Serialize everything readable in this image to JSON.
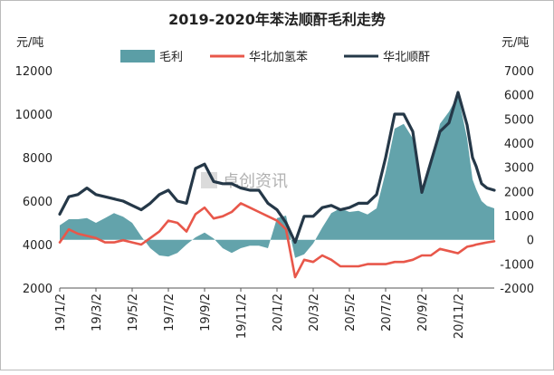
{
  "chart_data": {
    "type": "area",
    "title": "2019-2020年苯法顺酐毛利走势",
    "y_left_unit": "元/吨",
    "y_right_unit": "元/吨",
    "ylim_left": [
      2000,
      12000
    ],
    "ylim_right": [
      -2000,
      7000
    ],
    "yticks_left": [
      "2000",
      "4000",
      "6000",
      "8000",
      "10000",
      "12000"
    ],
    "yticks_right": [
      "-2000",
      "-1000",
      "0",
      "1000",
      "2000",
      "3000",
      "4000",
      "5000",
      "6000",
      "7000"
    ],
    "x_tick_labels": [
      "19/1/2",
      "19/3/2",
      "19/5/2",
      "19/7/2",
      "19/9/2",
      "19/11/2",
      "20/1/2",
      "20/3/2",
      "20/5/2",
      "20/7/2",
      "20/9/2",
      "20/11/2"
    ],
    "legend_position": "top",
    "watermark": "卓创资讯",
    "x_months": [
      0,
      0.5,
      1,
      1.5,
      2,
      2.5,
      3,
      3.5,
      4,
      4.5,
      5,
      5.5,
      6,
      6.5,
      7,
      7.5,
      8,
      8.5,
      9,
      9.5,
      10,
      10.5,
      11,
      11.5,
      12,
      12.5,
      13,
      13.5,
      14,
      14.5,
      15,
      15.5,
      16,
      16.5,
      17,
      17.5,
      18,
      18.5,
      19,
      19.5,
      20,
      20.5,
      21,
      21.5,
      22,
      22.5,
      22.8,
      23,
      23.3,
      23.6,
      24
    ],
    "series": [
      {
        "name": "毛利",
        "axis": "right",
        "color": "#5b9ea6",
        "values": [
          600,
          850,
          850,
          900,
          700,
          900,
          1100,
          950,
          700,
          150,
          -350,
          -650,
          -700,
          -550,
          -200,
          100,
          300,
          50,
          -350,
          -550,
          -350,
          -250,
          -250,
          -350,
          900,
          1000,
          -750,
          -600,
          -150,
          500,
          1100,
          1300,
          1150,
          1200,
          1050,
          1300,
          2800,
          4600,
          4800,
          4200,
          2000,
          3100,
          4800,
          5300,
          6000,
          4200,
          2500,
          2100,
          1600,
          1400,
          1300
        ]
      },
      {
        "name": "华北加氢苯",
        "axis": "left",
        "color": "#e8574a",
        "values": [
          4100,
          4700,
          4500,
          4400,
          4300,
          4100,
          4100,
          4200,
          4100,
          4000,
          4300,
          4600,
          5100,
          5000,
          4600,
          5400,
          5700,
          5200,
          5300,
          5500,
          5900,
          5700,
          5500,
          5300,
          5100,
          4700,
          2500,
          3300,
          3200,
          3500,
          3300,
          3000,
          3000,
          3000,
          3100,
          3100,
          3100,
          3200,
          3200,
          3300,
          3500,
          3500,
          3800,
          3700,
          3600,
          3900,
          3950,
          4000,
          4050,
          4100,
          4150
        ]
      },
      {
        "name": "华北顺酐",
        "axis": "left",
        "color": "#253848",
        "values": [
          5400,
          6200,
          6300,
          6600,
          6300,
          6200,
          6100,
          6000,
          5800,
          5600,
          5900,
          6300,
          6500,
          6000,
          5900,
          7500,
          7700,
          6900,
          6800,
          6800,
          6600,
          6500,
          6500,
          5900,
          5600,
          5000,
          4100,
          5300,
          5300,
          5700,
          5800,
          5600,
          5700,
          5900,
          5900,
          6300,
          8000,
          10000,
          10000,
          9200,
          6400,
          7800,
          9200,
          9600,
          11000,
          9500,
          8000,
          7600,
          6800,
          6600,
          6500
        ]
      }
    ]
  }
}
